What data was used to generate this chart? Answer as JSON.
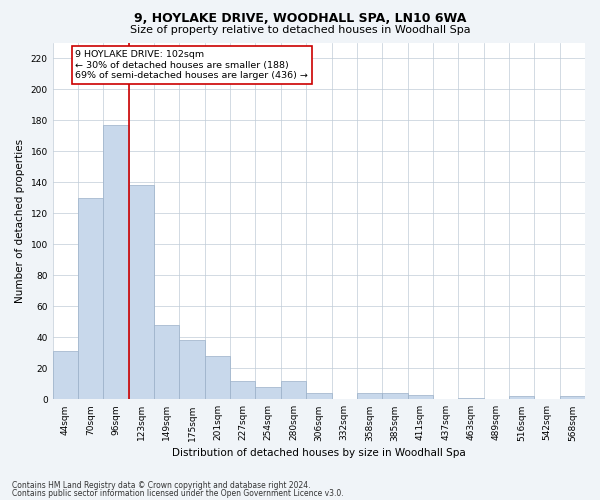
{
  "title": "9, HOYLAKE DRIVE, WOODHALL SPA, LN10 6WA",
  "subtitle": "Size of property relative to detached houses in Woodhall Spa",
  "xlabel": "Distribution of detached houses by size in Woodhall Spa",
  "ylabel": "Number of detached properties",
  "bar_color": "#c8d8eb",
  "bar_edge_color": "#9ab0c8",
  "grid_color": "#c0ccd8",
  "categories": [
    "44sqm",
    "70sqm",
    "96sqm",
    "123sqm",
    "149sqm",
    "175sqm",
    "201sqm",
    "227sqm",
    "254sqm",
    "280sqm",
    "306sqm",
    "332sqm",
    "358sqm",
    "385sqm",
    "411sqm",
    "437sqm",
    "463sqm",
    "489sqm",
    "516sqm",
    "542sqm",
    "568sqm"
  ],
  "values": [
    31,
    130,
    177,
    138,
    48,
    38,
    28,
    12,
    8,
    12,
    4,
    0,
    4,
    4,
    3,
    0,
    1,
    0,
    2,
    0,
    2
  ],
  "ylim": [
    0,
    230
  ],
  "yticks": [
    0,
    20,
    40,
    60,
    80,
    100,
    120,
    140,
    160,
    180,
    200,
    220
  ],
  "property_line_color": "#cc0000",
  "property_bin_index": 2,
  "annotation_text": "9 HOYLAKE DRIVE: 102sqm\n← 30% of detached houses are smaller (188)\n69% of semi-detached houses are larger (436) →",
  "annotation_box_color": "#ffffff",
  "annotation_box_edge": "#cc0000",
  "footer_line1": "Contains HM Land Registry data © Crown copyright and database right 2024.",
  "footer_line2": "Contains public sector information licensed under the Open Government Licence v3.0.",
  "background_color": "#f0f4f8",
  "plot_bg_color": "#ffffff",
  "title_fontsize": 9,
  "subtitle_fontsize": 8,
  "axis_label_fontsize": 7.5,
  "tick_fontsize": 6.5,
  "annotation_fontsize": 6.8,
  "footer_fontsize": 5.5
}
